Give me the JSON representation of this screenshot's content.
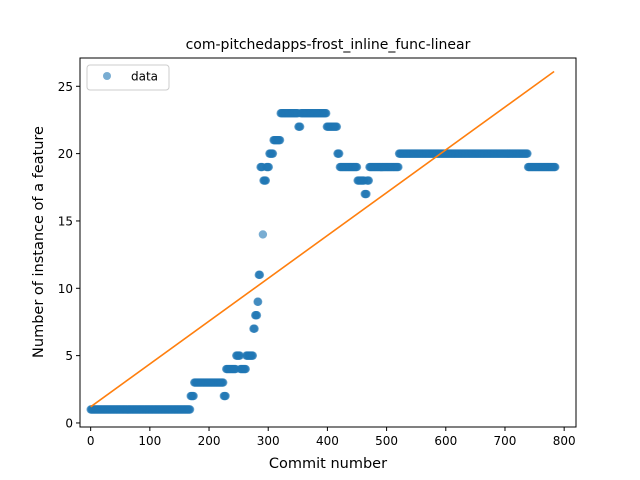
{
  "chart_data": {
    "type": "scatter",
    "title": "com-pitchedapps-frost_inline_func-linear",
    "xlabel": "Commit number",
    "ylabel": "Number of instance of a feature",
    "xlim": [
      -18,
      820
    ],
    "ylim": [
      -0.3,
      27.1
    ],
    "xticks": [
      0,
      100,
      200,
      300,
      400,
      500,
      600,
      700,
      800
    ],
    "yticks": [
      0,
      5,
      10,
      15,
      20,
      25
    ],
    "grid": false,
    "legend": {
      "placement": "upper-left",
      "entries": [
        "data"
      ]
    },
    "colors": {
      "points": "#1f77b4",
      "line": "#ff7f0e"
    },
    "series": [
      {
        "name": "data",
        "kind": "points",
        "segments": [
          {
            "x_from": 0,
            "x_to": 168,
            "y": 1
          },
          {
            "x_from": 169,
            "x_to": 174,
            "y": 2
          },
          {
            "x_from": 175,
            "x_to": 224,
            "y": 3
          },
          {
            "x_from": 225,
            "x_to": 228,
            "y": 2
          },
          {
            "x_from": 229,
            "x_to": 245,
            "y": 4
          },
          {
            "x_from": 246,
            "x_to": 252,
            "y": 5
          },
          {
            "x_from": 253,
            "x_to": 262,
            "y": 4
          },
          {
            "x_from": 263,
            "x_to": 274,
            "y": 5
          },
          {
            "x_from": 275,
            "x_to": 277,
            "y": 7
          },
          {
            "x_from": 278,
            "x_to": 281,
            "y": 8
          },
          {
            "x_from": 282,
            "x_to": 283,
            "y": 9
          },
          {
            "x_from": 284,
            "x_to": 286,
            "y": 11
          },
          {
            "x_from": 287,
            "x_to": 290,
            "y": 19
          },
          {
            "x_from": 291,
            "x_to": 291,
            "y": 14
          },
          {
            "x_from": 292,
            "x_to": 296,
            "y": 18
          },
          {
            "x_from": 297,
            "x_to": 301,
            "y": 19
          },
          {
            "x_from": 302,
            "x_to": 308,
            "y": 20
          },
          {
            "x_from": 309,
            "x_to": 320,
            "y": 21
          },
          {
            "x_from": 321,
            "x_to": 350,
            "y": 23
          },
          {
            "x_from": 351,
            "x_to": 354,
            "y": 22
          },
          {
            "x_from": 355,
            "x_to": 398,
            "y": 23
          },
          {
            "x_from": 399,
            "x_to": 416,
            "y": 22
          },
          {
            "x_from": 417,
            "x_to": 420,
            "y": 20
          },
          {
            "x_from": 421,
            "x_to": 450,
            "y": 19
          },
          {
            "x_from": 451,
            "x_to": 462,
            "y": 18
          },
          {
            "x_from": 463,
            "x_to": 466,
            "y": 17
          },
          {
            "x_from": 467,
            "x_to": 470,
            "y": 18
          },
          {
            "x_from": 471,
            "x_to": 520,
            "y": 19
          },
          {
            "x_from": 521,
            "x_to": 738,
            "y": 20
          },
          {
            "x_from": 739,
            "x_to": 785,
            "y": 19
          }
        ]
      },
      {
        "name": "",
        "kind": "line",
        "x": [
          0,
          783
        ],
        "y": [
          1.2,
          26.1
        ]
      }
    ]
  }
}
